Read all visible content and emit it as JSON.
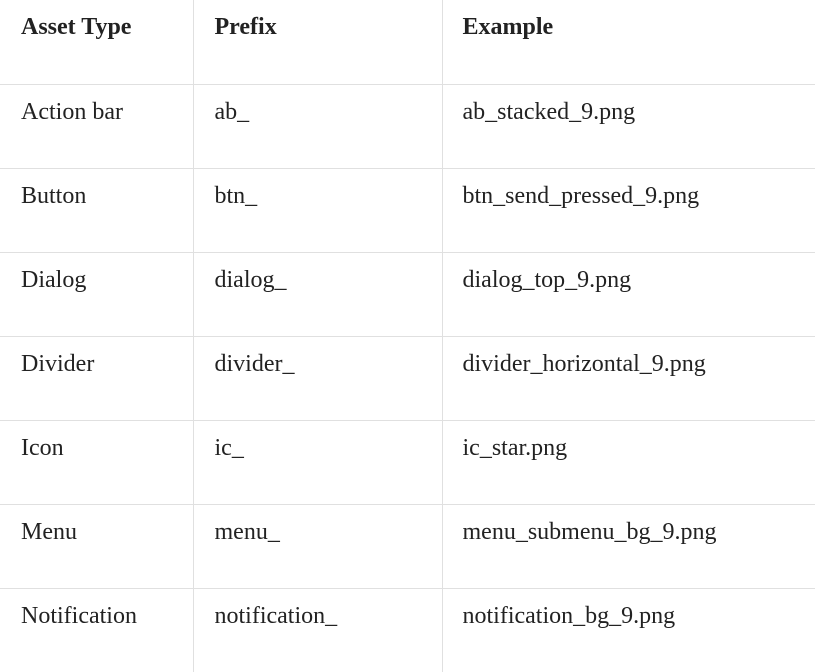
{
  "table": {
    "headers": [
      "Asset Type",
      "Prefix",
      "Example"
    ],
    "rows": [
      [
        "Action bar",
        "ab_",
        "ab_stacked_9.png"
      ],
      [
        "Button",
        "btn_",
        "btn_send_pressed_9.png"
      ],
      [
        "Dialog",
        "dialog_",
        "dialog_top_9.png"
      ],
      [
        "Divider",
        "divider_",
        "divider_horizontal_9.png"
      ],
      [
        "Icon",
        "ic_",
        "ic_star.png"
      ],
      [
        "Menu",
        "menu_",
        "menu_submenu_bg_9.png"
      ],
      [
        "Notification",
        "notification_",
        "notification_bg_9.png"
      ]
    ]
  },
  "colors": {
    "text": "#222222",
    "border": "#e0e0e0",
    "background": "#ffffff"
  }
}
